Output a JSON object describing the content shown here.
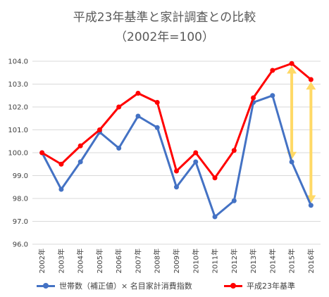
{
  "chart_data": {
    "type": "line",
    "title": "平成23年基準と家計調査との比較",
    "subtitle": "（2002年=100）",
    "categories": [
      "2002年",
      "2003年",
      "2004年",
      "2005年",
      "2006年",
      "2007年",
      "2008年",
      "2009年",
      "2010年",
      "2011年",
      "2012年",
      "2013年",
      "2014年",
      "2015年",
      "2016年"
    ],
    "ylim": [
      96.0,
      104.0
    ],
    "yticks": [
      "96.0",
      "97.0",
      "98.0",
      "99.0",
      "100.0",
      "101.0",
      "102.0",
      "103.0",
      "104.0"
    ],
    "grid": true,
    "legend_position": "bottom",
    "series": [
      {
        "name": "世帯数（補正値）× 名目家計消費指数",
        "color": "#4472C4",
        "values": [
          100.0,
          98.4,
          99.6,
          100.9,
          100.2,
          101.6,
          101.1,
          98.5,
          99.6,
          97.2,
          97.9,
          102.2,
          102.5,
          99.6,
          97.7
        ]
      },
      {
        "name": "平成23年基準",
        "color": "#FF0000",
        "values": [
          100.0,
          99.5,
          100.3,
          101.0,
          102.0,
          102.6,
          102.2,
          99.2,
          100.0,
          98.9,
          100.1,
          102.4,
          103.6,
          103.9,
          103.2
        ]
      }
    ],
    "annotations": [
      {
        "type": "double-arrow",
        "category": "2015年",
        "from": 99.7,
        "to": 103.8,
        "color": "#FFD966"
      },
      {
        "type": "double-arrow",
        "category": "2016年",
        "from": 97.8,
        "to": 103.1,
        "color": "#FFD966"
      }
    ]
  }
}
